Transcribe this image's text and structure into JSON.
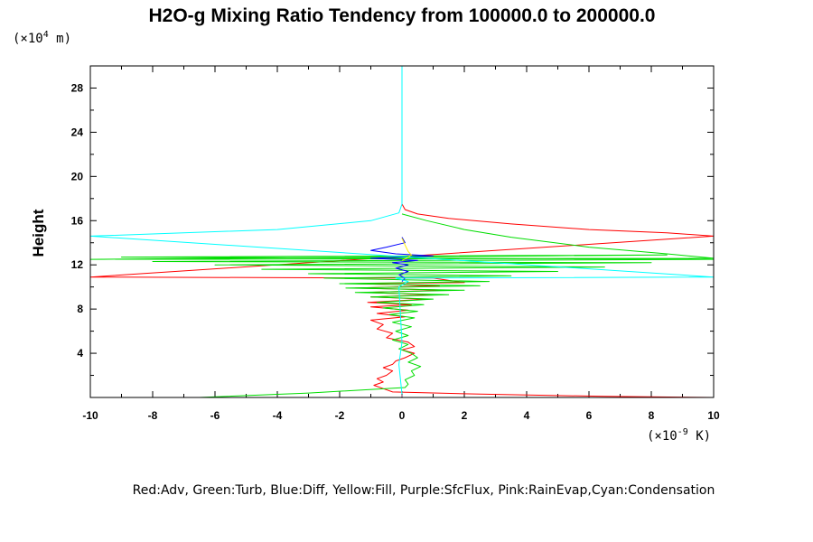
{
  "chart_data": {
    "type": "line",
    "title": "H2O-g Mixing Ratio Tendency from 100000.0 to 200000.0",
    "xlabel": "",
    "ylabel": "Height",
    "x_unit": "(×10",
    "x_unit_exp": "-9",
    "x_unit_tail": " K)",
    "y_unit": "(×10",
    "y_unit_exp": "4",
    "y_unit_tail": " m)",
    "xlim": [
      -10,
      10
    ],
    "ylim": [
      0,
      30
    ],
    "x_ticks": [
      -10,
      -8,
      -6,
      -4,
      -2,
      0,
      2,
      4,
      6,
      8,
      10
    ],
    "y_ticks": [
      4,
      8,
      12,
      16,
      20,
      24,
      28
    ],
    "legend_text": "Red:Adv, Green:Turb, Blue:Diff, Yellow:Fill, Purple:SfcFlux, Pink:RainEvap,Cyan:Condensation",
    "legend_placement": "bottom",
    "series": [
      {
        "color": "#ff0000",
        "points": [
          [
            0.0,
            30.0
          ],
          [
            0.0,
            17.5
          ],
          [
            0.1,
            17.0
          ],
          [
            0.5,
            16.6
          ],
          [
            1.5,
            16.2
          ],
          [
            3.5,
            15.7
          ],
          [
            6.0,
            15.2
          ],
          [
            8.5,
            14.9
          ],
          [
            10.0,
            14.6
          ],
          [
            -10.0,
            10.9
          ],
          [
            1.0,
            10.8
          ],
          [
            2.0,
            10.4
          ],
          [
            -1.5,
            10.3
          ],
          [
            1.2,
            10.1
          ],
          [
            -1.5,
            9.9
          ],
          [
            1.5,
            9.7
          ],
          [
            -1.2,
            9.5
          ],
          [
            1.0,
            9.3
          ],
          [
            -1.0,
            9.1
          ],
          [
            0.8,
            8.9
          ],
          [
            -1.1,
            8.6
          ],
          [
            0.3,
            8.4
          ],
          [
            -1.0,
            8.2
          ],
          [
            0.2,
            7.9
          ],
          [
            -0.8,
            7.6
          ],
          [
            0.1,
            7.3
          ],
          [
            -1.0,
            7.0
          ],
          [
            -0.6,
            6.6
          ],
          [
            -0.8,
            6.2
          ],
          [
            -0.3,
            5.8
          ],
          [
            -0.5,
            5.4
          ],
          [
            0.2,
            5.0
          ],
          [
            0.4,
            4.6
          ],
          [
            0.0,
            4.3
          ],
          [
            0.4,
            4.0
          ],
          [
            0.1,
            3.6
          ],
          [
            -0.2,
            3.3
          ],
          [
            -0.3,
            3.0
          ],
          [
            -0.6,
            2.7
          ],
          [
            -0.3,
            2.4
          ],
          [
            -0.5,
            2.0
          ],
          [
            -0.8,
            1.7
          ],
          [
            -0.6,
            1.4
          ],
          [
            -0.9,
            1.1
          ],
          [
            -0.6,
            0.8
          ],
          [
            -0.3,
            0.5
          ],
          [
            2.5,
            0.3
          ],
          [
            6.5,
            0.1
          ],
          [
            10.0,
            0.0
          ]
        ]
      },
      {
        "color": "#00dd00",
        "points": [
          [
            0.0,
            16.6
          ],
          [
            0.8,
            16.0
          ],
          [
            2.0,
            15.2
          ],
          [
            3.5,
            14.5
          ],
          [
            6.0,
            13.6
          ],
          [
            8.5,
            13.0
          ],
          [
            10.0,
            12.6
          ],
          [
            -10.0,
            12.5
          ],
          [
            8.5,
            12.9
          ],
          [
            -9.0,
            12.7
          ],
          [
            10.0,
            12.5
          ],
          [
            -8.0,
            12.3
          ],
          [
            8.0,
            12.2
          ],
          [
            -6.0,
            12.0
          ],
          [
            6.5,
            11.8
          ],
          [
            -4.5,
            11.6
          ],
          [
            5.0,
            11.4
          ],
          [
            -3.0,
            11.2
          ],
          [
            3.5,
            11.0
          ],
          [
            -2.5,
            10.8
          ],
          [
            2.8,
            10.5
          ],
          [
            -2.0,
            10.3
          ],
          [
            2.5,
            10.1
          ],
          [
            -1.8,
            9.9
          ],
          [
            2.0,
            9.7
          ],
          [
            -1.5,
            9.5
          ],
          [
            1.5,
            9.3
          ],
          [
            -1.0,
            9.1
          ],
          [
            1.0,
            8.9
          ],
          [
            -0.8,
            8.6
          ],
          [
            0.7,
            8.4
          ],
          [
            -0.6,
            8.1
          ],
          [
            0.5,
            7.8
          ],
          [
            -0.4,
            7.5
          ],
          [
            0.4,
            7.2
          ],
          [
            -0.3,
            6.8
          ],
          [
            0.3,
            6.4
          ],
          [
            -0.2,
            6.0
          ],
          [
            0.2,
            5.6
          ],
          [
            -0.3,
            5.2
          ],
          [
            0.2,
            4.8
          ],
          [
            -0.1,
            4.4
          ],
          [
            0.3,
            4.0
          ],
          [
            0.5,
            3.6
          ],
          [
            0.2,
            3.2
          ],
          [
            0.6,
            2.8
          ],
          [
            0.3,
            2.4
          ],
          [
            0.4,
            2.0
          ],
          [
            0.1,
            1.6
          ],
          [
            0.2,
            1.2
          ],
          [
            0.1,
            0.9
          ],
          [
            -3.0,
            0.4
          ],
          [
            -6.5,
            0.0
          ]
        ]
      },
      {
        "color": "#0000ff",
        "points": [
          [
            0.0,
            14.5
          ],
          [
            0.1,
            14.0
          ],
          [
            -0.5,
            13.6
          ],
          [
            -1.0,
            13.3
          ],
          [
            -0.2,
            13.0
          ],
          [
            1.0,
            12.8
          ],
          [
            -1.0,
            12.6
          ],
          [
            0.5,
            12.4
          ],
          [
            -0.3,
            12.2
          ],
          [
            0.2,
            12.0
          ],
          [
            -0.2,
            11.7
          ],
          [
            0.2,
            11.4
          ],
          [
            -0.1,
            11.1
          ],
          [
            0.1,
            10.8
          ],
          [
            0.0,
            10.5
          ]
        ]
      },
      {
        "color": "#00ffff",
        "points": [
          [
            0.0,
            30.0
          ],
          [
            0.0,
            17.5
          ],
          [
            -0.1,
            16.7
          ],
          [
            -1.0,
            16.0
          ],
          [
            -4.0,
            15.2
          ],
          [
            -10.0,
            14.6
          ],
          [
            10.0,
            10.9
          ],
          [
            -0.2,
            10.8
          ],
          [
            0.2,
            10.5
          ],
          [
            -0.1,
            10.0
          ],
          [
            0.0,
            5.0
          ],
          [
            -0.1,
            3.0
          ],
          [
            0.0,
            0.3
          ]
        ]
      },
      {
        "color": "#ffee00",
        "points": [
          [
            0.0,
            14.4
          ],
          [
            0.1,
            13.8
          ],
          [
            0.2,
            13.2
          ],
          [
            0.3,
            12.9
          ],
          [
            0.15,
            12.6
          ],
          [
            0.0,
            12.4
          ]
        ]
      },
      {
        "color": "#aa00aa",
        "points": [
          [
            -10.0,
            0.0
          ],
          [
            -6.0,
            0.0
          ]
        ]
      },
      {
        "color": "#ff66cc",
        "points": [
          [
            0.0,
            0.2
          ],
          [
            0.0,
            0.1
          ]
        ]
      }
    ]
  }
}
